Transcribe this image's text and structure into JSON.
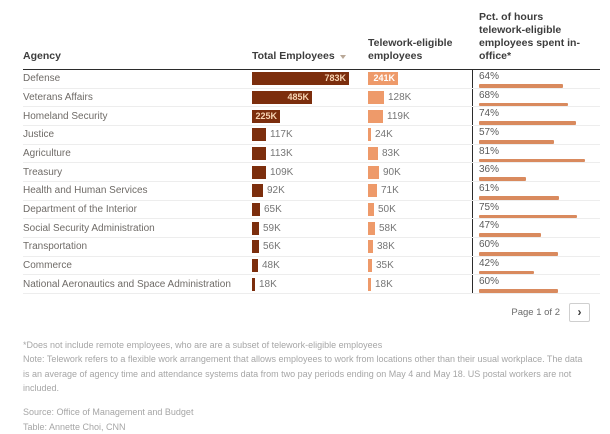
{
  "colors": {
    "total_bar": "#7c2e0d",
    "telework_bar": "#ee9a6a",
    "pct_bar": "#d98a5e"
  },
  "table": {
    "columns": {
      "agency": "Agency",
      "total": "Total Employees",
      "telework": "Telework-eligible employees",
      "pct": "Pct. of hours telework-eligible employees spent in-office*"
    },
    "rows": [
      {
        "agency": "Defense",
        "total_label": "783K",
        "total_k": 783,
        "telework_label": "241K",
        "telework_k": 241,
        "pct_label": "64%",
        "pct": 64
      },
      {
        "agency": "Veterans Affairs",
        "total_label": "485K",
        "total_k": 485,
        "telework_label": "128K",
        "telework_k": 128,
        "pct_label": "68%",
        "pct": 68
      },
      {
        "agency": "Homeland Security",
        "total_label": "225K",
        "total_k": 225,
        "telework_label": "119K",
        "telework_k": 119,
        "pct_label": "74%",
        "pct": 74
      },
      {
        "agency": "Justice",
        "total_label": "117K",
        "total_k": 117,
        "telework_label": "24K",
        "telework_k": 24,
        "pct_label": "57%",
        "pct": 57
      },
      {
        "agency": "Agriculture",
        "total_label": "113K",
        "total_k": 113,
        "telework_label": "83K",
        "telework_k": 83,
        "pct_label": "81%",
        "pct": 81
      },
      {
        "agency": "Treasury",
        "total_label": "109K",
        "total_k": 109,
        "telework_label": "90K",
        "telework_k": 90,
        "pct_label": "36%",
        "pct": 36
      },
      {
        "agency": "Health and Human Services",
        "total_label": "92K",
        "total_k": 92,
        "telework_label": "71K",
        "telework_k": 71,
        "pct_label": "61%",
        "pct": 61
      },
      {
        "agency": "Department of the Interior",
        "total_label": "65K",
        "total_k": 65,
        "telework_label": "50K",
        "telework_k": 50,
        "pct_label": "75%",
        "pct": 75
      },
      {
        "agency": "Social Security Administration",
        "total_label": "59K",
        "total_k": 59,
        "telework_label": "58K",
        "telework_k": 58,
        "pct_label": "47%",
        "pct": 47
      },
      {
        "agency": "Transportation",
        "total_label": "56K",
        "total_k": 56,
        "telework_label": "38K",
        "telework_k": 38,
        "pct_label": "60%",
        "pct": 60
      },
      {
        "agency": "Commerce",
        "total_label": "48K",
        "total_k": 48,
        "telework_label": "35K",
        "telework_k": 35,
        "pct_label": "42%",
        "pct": 42
      },
      {
        "agency": "National Aeronautics and Space Administration",
        "total_label": "18K",
        "total_k": 18,
        "telework_label": "18K",
        "telework_k": 18,
        "pct_label": "60%",
        "pct": 60
      }
    ]
  },
  "chart_data": {
    "type": "bar",
    "title": "Federal agency telework table",
    "categories": [
      "Defense",
      "Veterans Affairs",
      "Homeland Security",
      "Justice",
      "Agriculture",
      "Treasury",
      "Health and Human Services",
      "Department of the Interior",
      "Social Security Administration",
      "Transportation",
      "Commerce",
      "National Aeronautics and Space Administration"
    ],
    "series": [
      {
        "name": "Total Employees",
        "unit": "K",
        "values": [
          783,
          485,
          225,
          117,
          113,
          109,
          92,
          65,
          59,
          56,
          48,
          18
        ]
      },
      {
        "name": "Telework-eligible employees",
        "unit": "K",
        "values": [
          241,
          128,
          119,
          24,
          83,
          90,
          71,
          50,
          58,
          38,
          35,
          18
        ]
      },
      {
        "name": "Pct. of hours telework-eligible employees spent in-office",
        "unit": "%",
        "values": [
          64,
          68,
          74,
          57,
          81,
          36,
          61,
          75,
          47,
          60,
          42,
          60
        ]
      }
    ],
    "layout": {
      "orientation": "horizontal",
      "grid": false,
      "legend": "column headers",
      "sorted_by": "Total Employees descending"
    }
  },
  "pagination": {
    "label": "Page 1 of 2",
    "next_button": "›"
  },
  "notes": {
    "footnote": "*Does not include remote employees, who are are a subset of telework-eligible employees",
    "note": "Note: Telework refers to a flexible work arrangement that allows employees to work from locations other than their usual workplace. The data is an average of agency time and attendance systems data from two pay periods ending on May 4 and May 18. US postal workers are not included.",
    "source": "Source: Office of Management and Budget",
    "credit": "Table: Annette Choi, CNN"
  }
}
